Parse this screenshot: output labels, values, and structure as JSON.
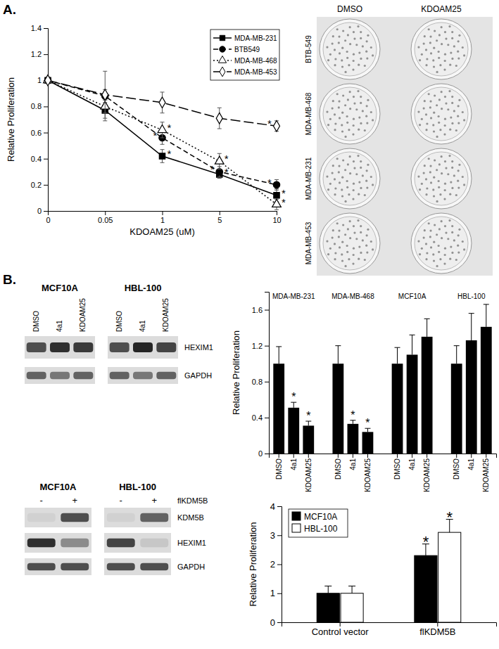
{
  "chart_data": [
    {
      "type": "line",
      "x_label": "KDOAM25 (uM)",
      "y_label": "Relative Proliferation",
      "categories": [
        "0",
        "0.05",
        "1",
        "5",
        "10"
      ],
      "ylim": [
        0,
        1.4
      ],
      "yticks": [
        0,
        0.2,
        0.4,
        0.6,
        0.8,
        1,
        1.2,
        1.4
      ],
      "legend": "upper right",
      "series": [
        {
          "name": "MDA-MB-231",
          "color": "#000000",
          "marker": "square",
          "line_style": "solid",
          "values": [
            1,
            0.77,
            0.42,
            0.28,
            0.12
          ],
          "errors": [
            0,
            0.08,
            0.05,
            0.03,
            0.05
          ]
        },
        {
          "name": "BTB549",
          "color": "#000000",
          "marker": "circle",
          "line_style": "dashed",
          "values": [
            1,
            0.88,
            0.56,
            0.3,
            0.2
          ],
          "errors": [
            0,
            0.05,
            0.05,
            0.04,
            0.04
          ]
        },
        {
          "name": "MDA-MB-468",
          "color": "#000000",
          "marker": "triangle-open",
          "line_style": "dotted",
          "values": [
            1,
            0.8,
            0.62,
            0.38,
            0.05
          ],
          "errors": [
            0,
            0.05,
            0.06,
            0.06,
            0.04
          ]
        },
        {
          "name": "MDA-MB-453",
          "color": "#000000",
          "marker": "diamond-open",
          "line_style": "longdash",
          "values": [
            1,
            0.89,
            0.83,
            0.71,
            0.65
          ],
          "errors": [
            0,
            0.18,
            0.08,
            0.08,
            0.04
          ]
        }
      ],
      "annotations": [
        {
          "text": "*",
          "series": 0,
          "index": 2
        },
        {
          "text": "*",
          "series": 0,
          "index": 3
        },
        {
          "text": "*",
          "series": 0,
          "index": 4
        },
        {
          "text": "*",
          "series": 1,
          "index": 2
        },
        {
          "text": "*",
          "series": 1,
          "index": 3
        },
        {
          "text": "*",
          "series": 1,
          "index": 4
        },
        {
          "text": "*",
          "series": 2,
          "index": 2
        },
        {
          "text": "*",
          "series": 2,
          "index": 3
        },
        {
          "text": "*",
          "series": 2,
          "index": 4
        },
        {
          "text": "*",
          "series": 3,
          "index": 4
        }
      ]
    },
    {
      "type": "bar",
      "y_label": "Relative Proliferation",
      "groups": [
        "MDA-MB-231",
        "MDA-MB-468",
        "MCF10A",
        "HBL-100"
      ],
      "categories": [
        "DMSO",
        "4a1",
        "KDOAM25",
        "DMSO",
        "4a1",
        "KDOAM25",
        "DMSO",
        "4a1",
        "KDOAM25",
        "DMSO",
        "4a1",
        "KDOAM25"
      ],
      "color": "#000000",
      "values": [
        1,
        0.51,
        0.31,
        1,
        0.33,
        0.24,
        1,
        1.1,
        1.3,
        1,
        1.26,
        1.41
      ],
      "errors": [
        0.19,
        0.06,
        0.05,
        0.2,
        0.04,
        0.04,
        0.18,
        0.22,
        0.2,
        0.2,
        0.3,
        0.25
      ],
      "ylim": [
        0,
        1.8
      ],
      "yticks": [
        0,
        0.4,
        0.8,
        1.2,
        1.6
      ],
      "annotations": [
        {
          "text": "*",
          "index": 1
        },
        {
          "text": "*",
          "index": 2
        },
        {
          "text": "*",
          "index": 4
        },
        {
          "text": "*",
          "index": 5
        }
      ]
    },
    {
      "type": "bar",
      "y_label": "Relative Proliferation",
      "categories": [
        "Control vector",
        "flKDM5B"
      ],
      "series": [
        {
          "name": "MCF10A",
          "color": "#000000",
          "values": [
            1,
            2.3
          ],
          "errors": [
            0.25,
            0.4
          ]
        },
        {
          "name": "HBL-100",
          "color": "#ffffff",
          "values": [
            1,
            3.1
          ],
          "errors": [
            0.25,
            0.45
          ]
        }
      ],
      "ylim": [
        0,
        4
      ],
      "yticks": [
        0,
        1,
        2,
        3,
        4
      ],
      "legend": "upper left",
      "annotations": [
        {
          "text": "*",
          "series": 0,
          "index": 1
        },
        {
          "text": "*",
          "series": 1,
          "index": 1
        }
      ]
    }
  ],
  "figure": {
    "panels": [
      "A.",
      "B."
    ],
    "plates": {
      "columns": [
        "DMSO",
        "KDOAM25"
      ],
      "rows": [
        "BTB-549",
        "MDA-MB-468",
        "MDA-MB-231",
        "MDA-MB-453"
      ]
    },
    "blots": [
      {
        "groups": [
          {
            "title": "MCF10A",
            "lanes": [
              "DMSO",
              "4a1",
              "KDOAM25"
            ]
          },
          {
            "title": "HBL-100",
            "lanes": [
              "DMSO",
              "4a1",
              "KDOAM25"
            ]
          }
        ],
        "rows": [
          {
            "label": "HEXIM1",
            "intensity": [
              0.7,
              0.85,
              0.8,
              0.7,
              0.9,
              0.75
            ]
          },
          {
            "label": "GAPDH",
            "intensity": [
              0.6,
              0.5,
              0.6,
              0.6,
              0.5,
              0.6
            ]
          }
        ]
      },
      {
        "groups": [
          {
            "title": "MCF10A",
            "lanes": [
              "-",
              "+"
            ]
          },
          {
            "title": "HBL-100",
            "lanes": [
              "-",
              "+"
            ]
          }
        ],
        "lane_label": "flKDM5B",
        "rows": [
          {
            "label": "KDM5B",
            "intensity": [
              0.05,
              0.7,
              0.05,
              0.6
            ]
          },
          {
            "label": "HEXIM1",
            "intensity": [
              0.85,
              0.4,
              0.75,
              0.1
            ]
          },
          {
            "label": "GAPDH",
            "intensity": [
              0.7,
              0.7,
              0.7,
              0.7
            ]
          }
        ]
      }
    ]
  }
}
